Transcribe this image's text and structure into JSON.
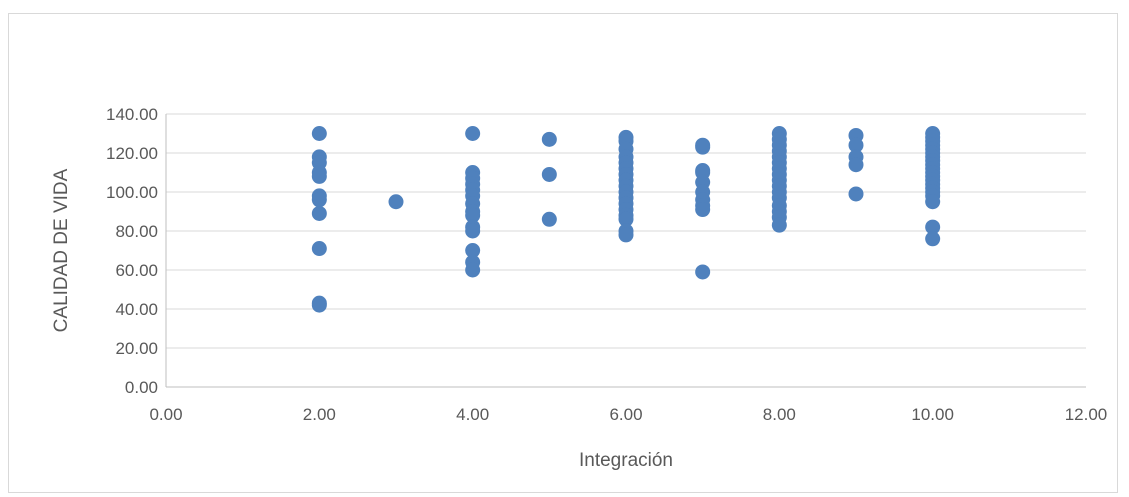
{
  "chart_data": {
    "type": "scatter",
    "title": "",
    "xlabel": "Integración",
    "ylabel": "CALIDAD DE VIDA",
    "xlim": [
      0,
      12
    ],
    "ylim": [
      0,
      140
    ],
    "xticks": [
      "0.00",
      "2.00",
      "4.00",
      "6.00",
      "8.00",
      "10.00",
      "12.00"
    ],
    "yticks": [
      "0.00",
      "20.00",
      "40.00",
      "60.00",
      "80.00",
      "100.00",
      "120.00",
      "140.00"
    ],
    "grid": "horizontal",
    "legend": "none",
    "marker_color": "#4f81bd",
    "grid_color": "#d9d9d9",
    "axis_color": "#bfbfbf",
    "series": [
      {
        "points": [
          [
            2,
            130
          ],
          [
            2,
            118
          ],
          [
            2,
            115
          ],
          [
            2,
            110
          ],
          [
            2,
            108
          ],
          [
            2,
            98
          ],
          [
            2,
            96
          ],
          [
            2,
            89
          ],
          [
            2,
            71
          ],
          [
            2,
            43
          ],
          [
            2,
            42
          ],
          [
            3,
            95
          ],
          [
            4,
            130
          ],
          [
            4,
            110
          ],
          [
            4,
            107
          ],
          [
            4,
            104
          ],
          [
            4,
            101
          ],
          [
            4,
            98
          ],
          [
            4,
            94
          ],
          [
            4,
            90
          ],
          [
            4,
            88
          ],
          [
            4,
            82
          ],
          [
            4,
            80
          ],
          [
            4,
            70
          ],
          [
            4,
            64
          ],
          [
            4,
            60
          ],
          [
            5,
            127
          ],
          [
            5,
            109
          ],
          [
            5,
            86
          ],
          [
            6,
            128
          ],
          [
            6,
            126
          ],
          [
            6,
            122
          ],
          [
            6,
            118
          ],
          [
            6,
            115
          ],
          [
            6,
            112
          ],
          [
            6,
            109
          ],
          [
            6,
            106
          ],
          [
            6,
            103
          ],
          [
            6,
            100
          ],
          [
            6,
            97
          ],
          [
            6,
            94
          ],
          [
            6,
            91
          ],
          [
            6,
            88
          ],
          [
            6,
            86
          ],
          [
            6,
            80
          ],
          [
            6,
            78
          ],
          [
            7,
            124
          ],
          [
            7,
            123
          ],
          [
            7,
            111
          ],
          [
            7,
            110
          ],
          [
            7,
            105
          ],
          [
            7,
            100
          ],
          [
            7,
            96
          ],
          [
            7,
            93
          ],
          [
            7,
            91
          ],
          [
            7,
            59
          ],
          [
            8,
            130
          ],
          [
            8,
            127
          ],
          [
            8,
            124
          ],
          [
            8,
            121
          ],
          [
            8,
            118
          ],
          [
            8,
            115
          ],
          [
            8,
            112
          ],
          [
            8,
            109
          ],
          [
            8,
            106
          ],
          [
            8,
            103
          ],
          [
            8,
            100
          ],
          [
            8,
            97
          ],
          [
            8,
            93
          ],
          [
            8,
            90
          ],
          [
            8,
            87
          ],
          [
            8,
            83
          ],
          [
            9,
            129
          ],
          [
            9,
            124
          ],
          [
            9,
            118
          ],
          [
            9,
            114
          ],
          [
            9,
            99
          ],
          [
            10,
            130
          ],
          [
            10,
            128
          ],
          [
            10,
            126
          ],
          [
            10,
            124
          ],
          [
            10,
            122
          ],
          [
            10,
            120
          ],
          [
            10,
            118
          ],
          [
            10,
            116
          ],
          [
            10,
            114
          ],
          [
            10,
            112
          ],
          [
            10,
            110
          ],
          [
            10,
            108
          ],
          [
            10,
            106
          ],
          [
            10,
            104
          ],
          [
            10,
            102
          ],
          [
            10,
            100
          ],
          [
            10,
            98
          ],
          [
            10,
            95
          ],
          [
            10,
            82
          ],
          [
            10,
            76
          ]
        ]
      }
    ]
  }
}
